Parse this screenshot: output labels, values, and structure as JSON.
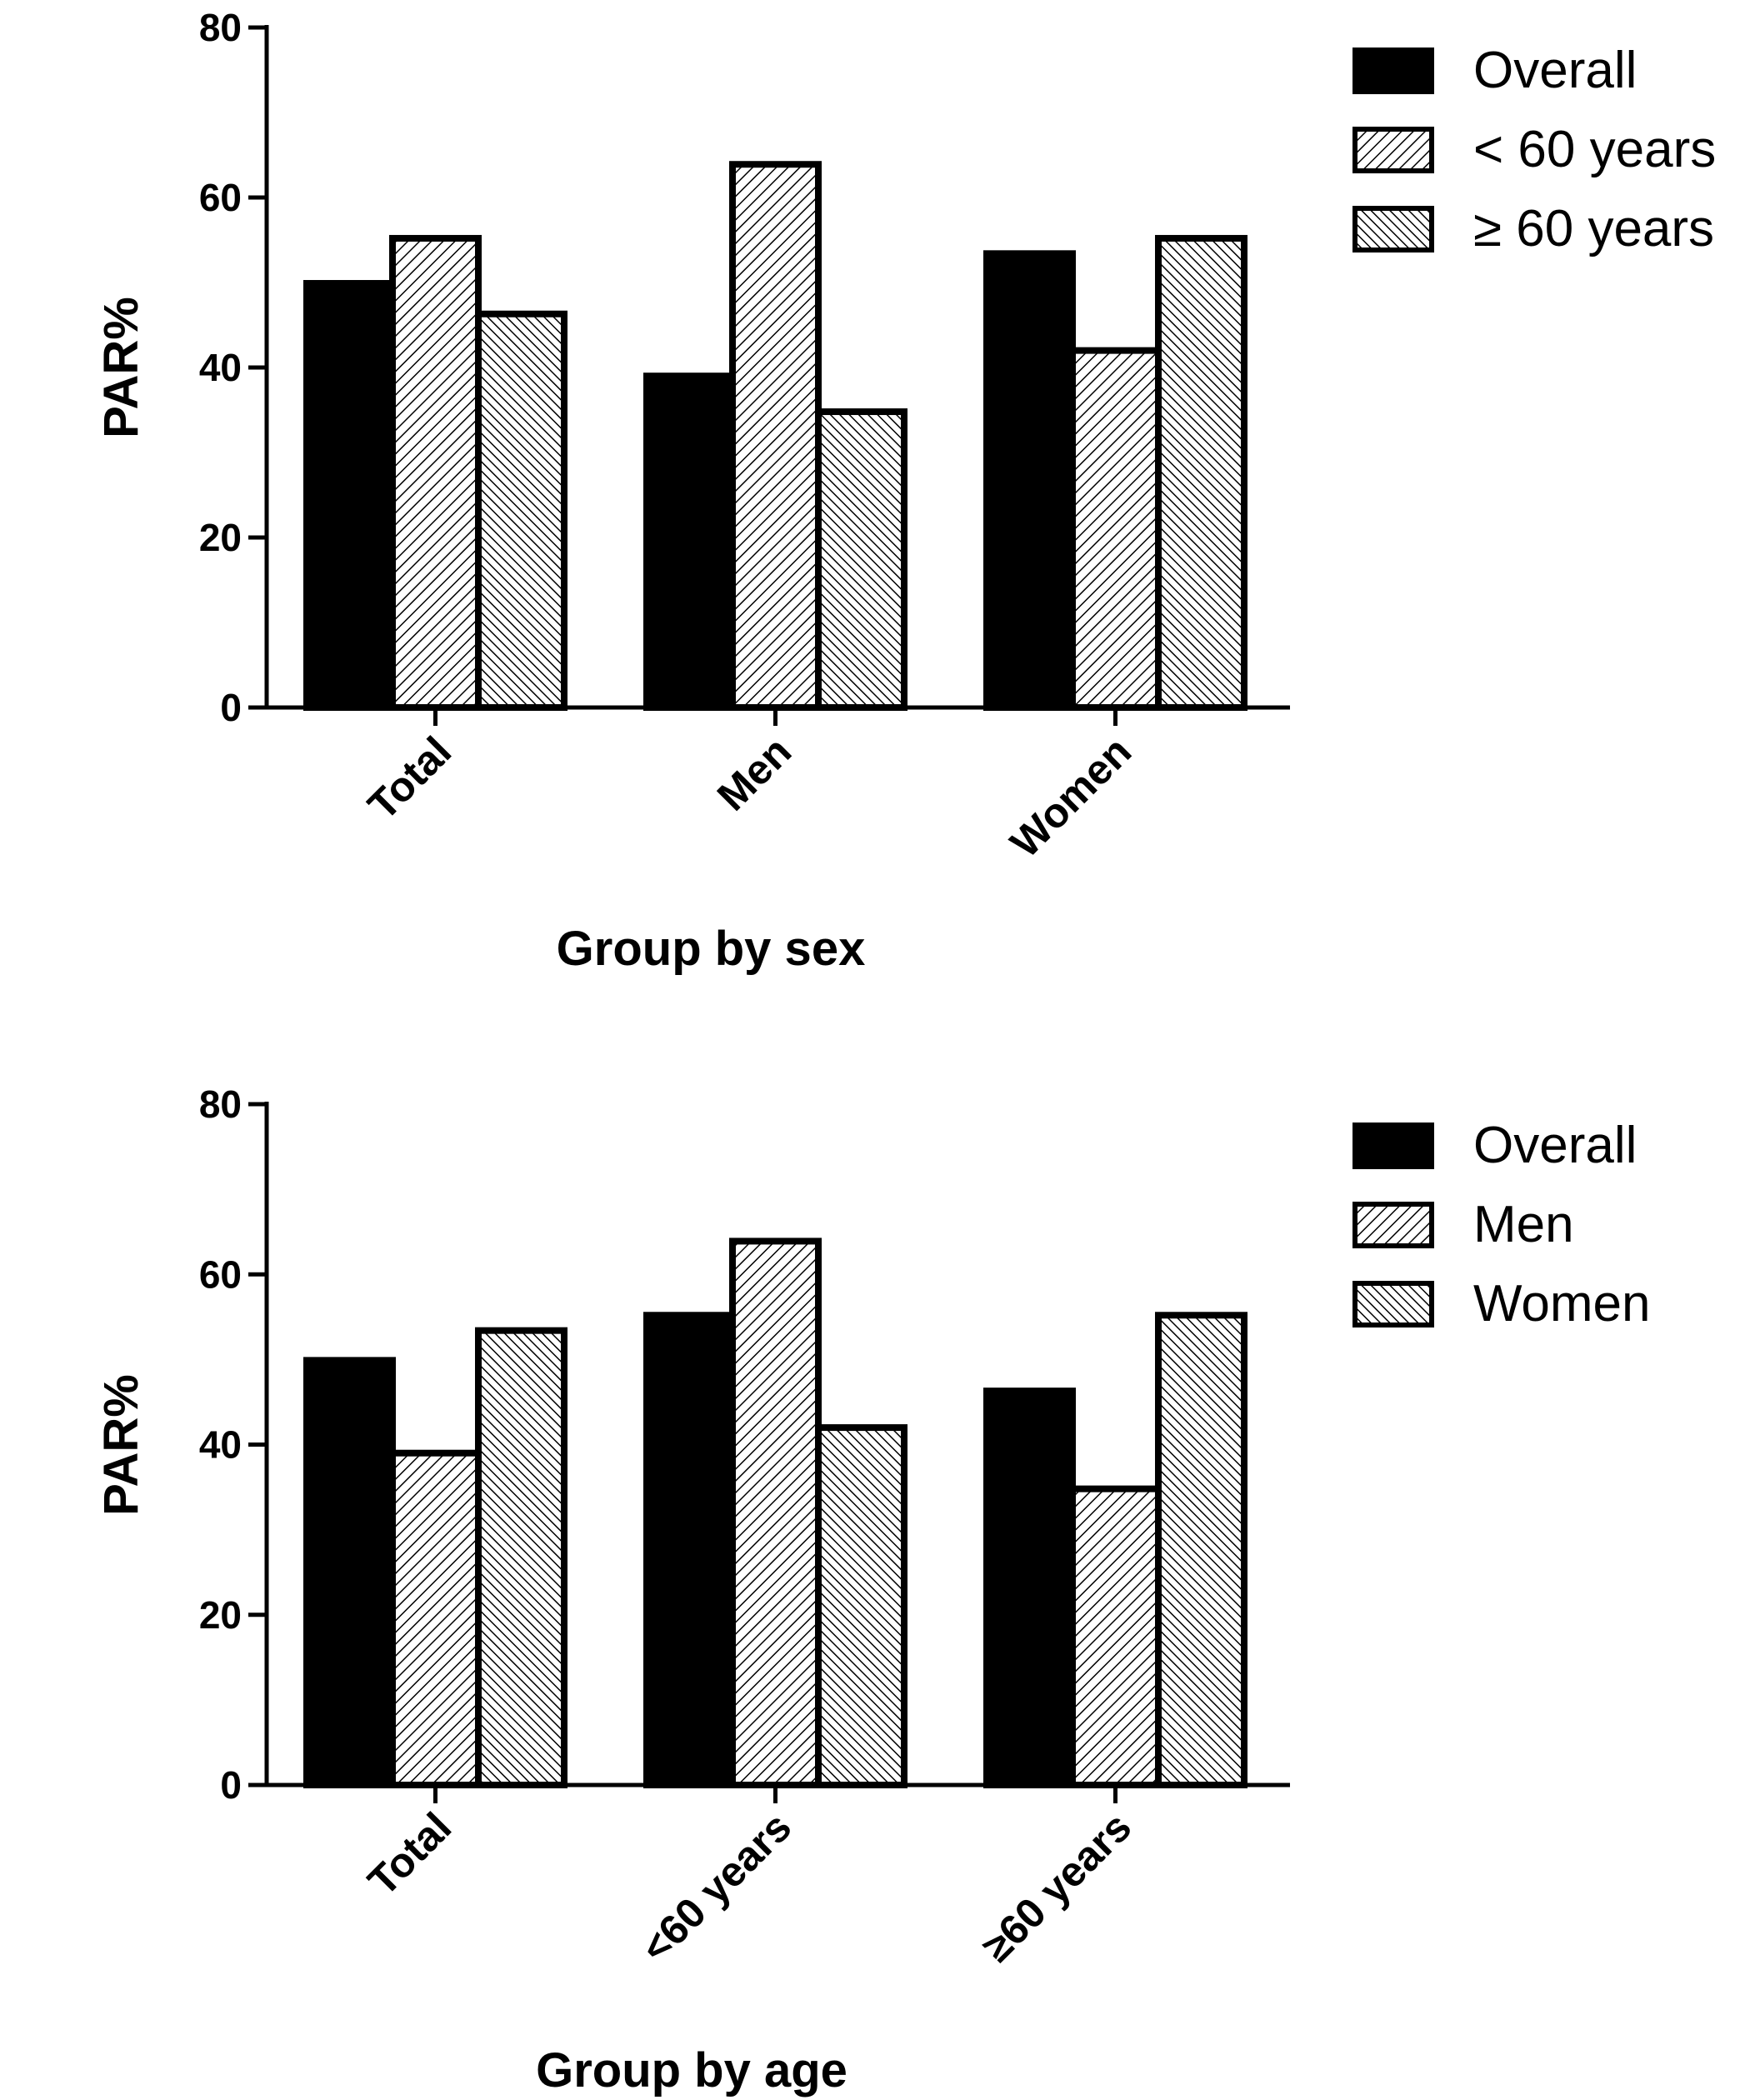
{
  "chart_data": [
    {
      "type": "bar",
      "xlabel": "Group by sex",
      "ylabel": "PAR%",
      "ylim": [
        0,
        80
      ],
      "yticks": [
        0,
        20,
        40,
        60,
        80
      ],
      "categories": [
        "Total",
        "Men",
        "Women"
      ],
      "series": [
        {
          "name": "Overall",
          "values": [
            49.9,
            39.0,
            53.4
          ],
          "pattern": "solid"
        },
        {
          "name": "< 60 years",
          "values": [
            55.2,
            63.9,
            42.0
          ],
          "pattern": "hatch-fwd"
        },
        {
          "name": "≥ 60 years",
          "values": [
            46.3,
            34.8,
            55.2
          ],
          "pattern": "hatch-back"
        }
      ],
      "legend_position": "top-right",
      "grid": false
    },
    {
      "type": "bar",
      "xlabel": "Group by age",
      "ylabel": "PAR%",
      "ylim": [
        0,
        80
      ],
      "yticks": [
        0,
        20,
        40,
        60,
        80
      ],
      "categories": [
        "Total",
        "<60 years",
        "≥60 years"
      ],
      "series": [
        {
          "name": "Overall",
          "values": [
            49.9,
            55.2,
            46.3
          ],
          "pattern": "solid"
        },
        {
          "name": "Men",
          "values": [
            39.0,
            63.9,
            34.8
          ],
          "pattern": "hatch-fwd"
        },
        {
          "name": "Women",
          "values": [
            53.4,
            42.0,
            55.2
          ],
          "pattern": "hatch-back"
        }
      ],
      "legend_position": "top-right",
      "grid": false
    }
  ]
}
